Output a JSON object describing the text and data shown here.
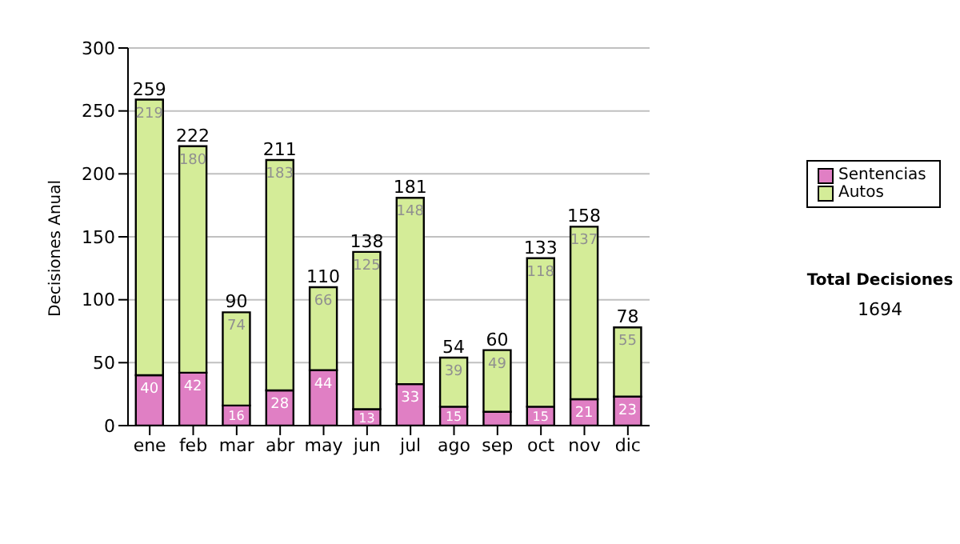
{
  "chart_data": {
    "type": "bar",
    "stacked": true,
    "ylabel": "Decisiones Anual",
    "categories": [
      "ene",
      "feb",
      "mar",
      "abr",
      "may",
      "jun",
      "jul",
      "ago",
      "sep",
      "oct",
      "nov",
      "dic"
    ],
    "series": [
      {
        "name": "Sentencias",
        "color": "#e07fc4",
        "values": [
          40,
          42,
          16,
          28,
          44,
          13,
          33,
          15,
          11,
          15,
          21,
          23
        ],
        "value_labels": [
          "40",
          "42",
          "16",
          "28",
          "44",
          "13",
          "33",
          "15",
          null,
          "15",
          "21",
          "23"
        ]
      },
      {
        "name": "Autos",
        "color": "#d4ec98",
        "values": [
          219,
          180,
          74,
          183,
          66,
          125,
          148,
          39,
          49,
          118,
          137,
          55
        ],
        "value_labels": [
          "219",
          "180",
          "74",
          "183",
          "66",
          "125",
          "148",
          "39",
          "49",
          "118",
          "137",
          "55"
        ]
      }
    ],
    "totals": [
      "259",
      "222",
      "90",
      "211",
      "110",
      "138",
      "181",
      "54",
      "60",
      "133",
      "158",
      "78"
    ],
    "ylim": [
      0,
      300
    ],
    "yticks": [
      0,
      50,
      100,
      150,
      200,
      250,
      300
    ],
    "grid": "y",
    "legend": "right",
    "annotations": [
      "Total Decisiones",
      "1694"
    ]
  }
}
